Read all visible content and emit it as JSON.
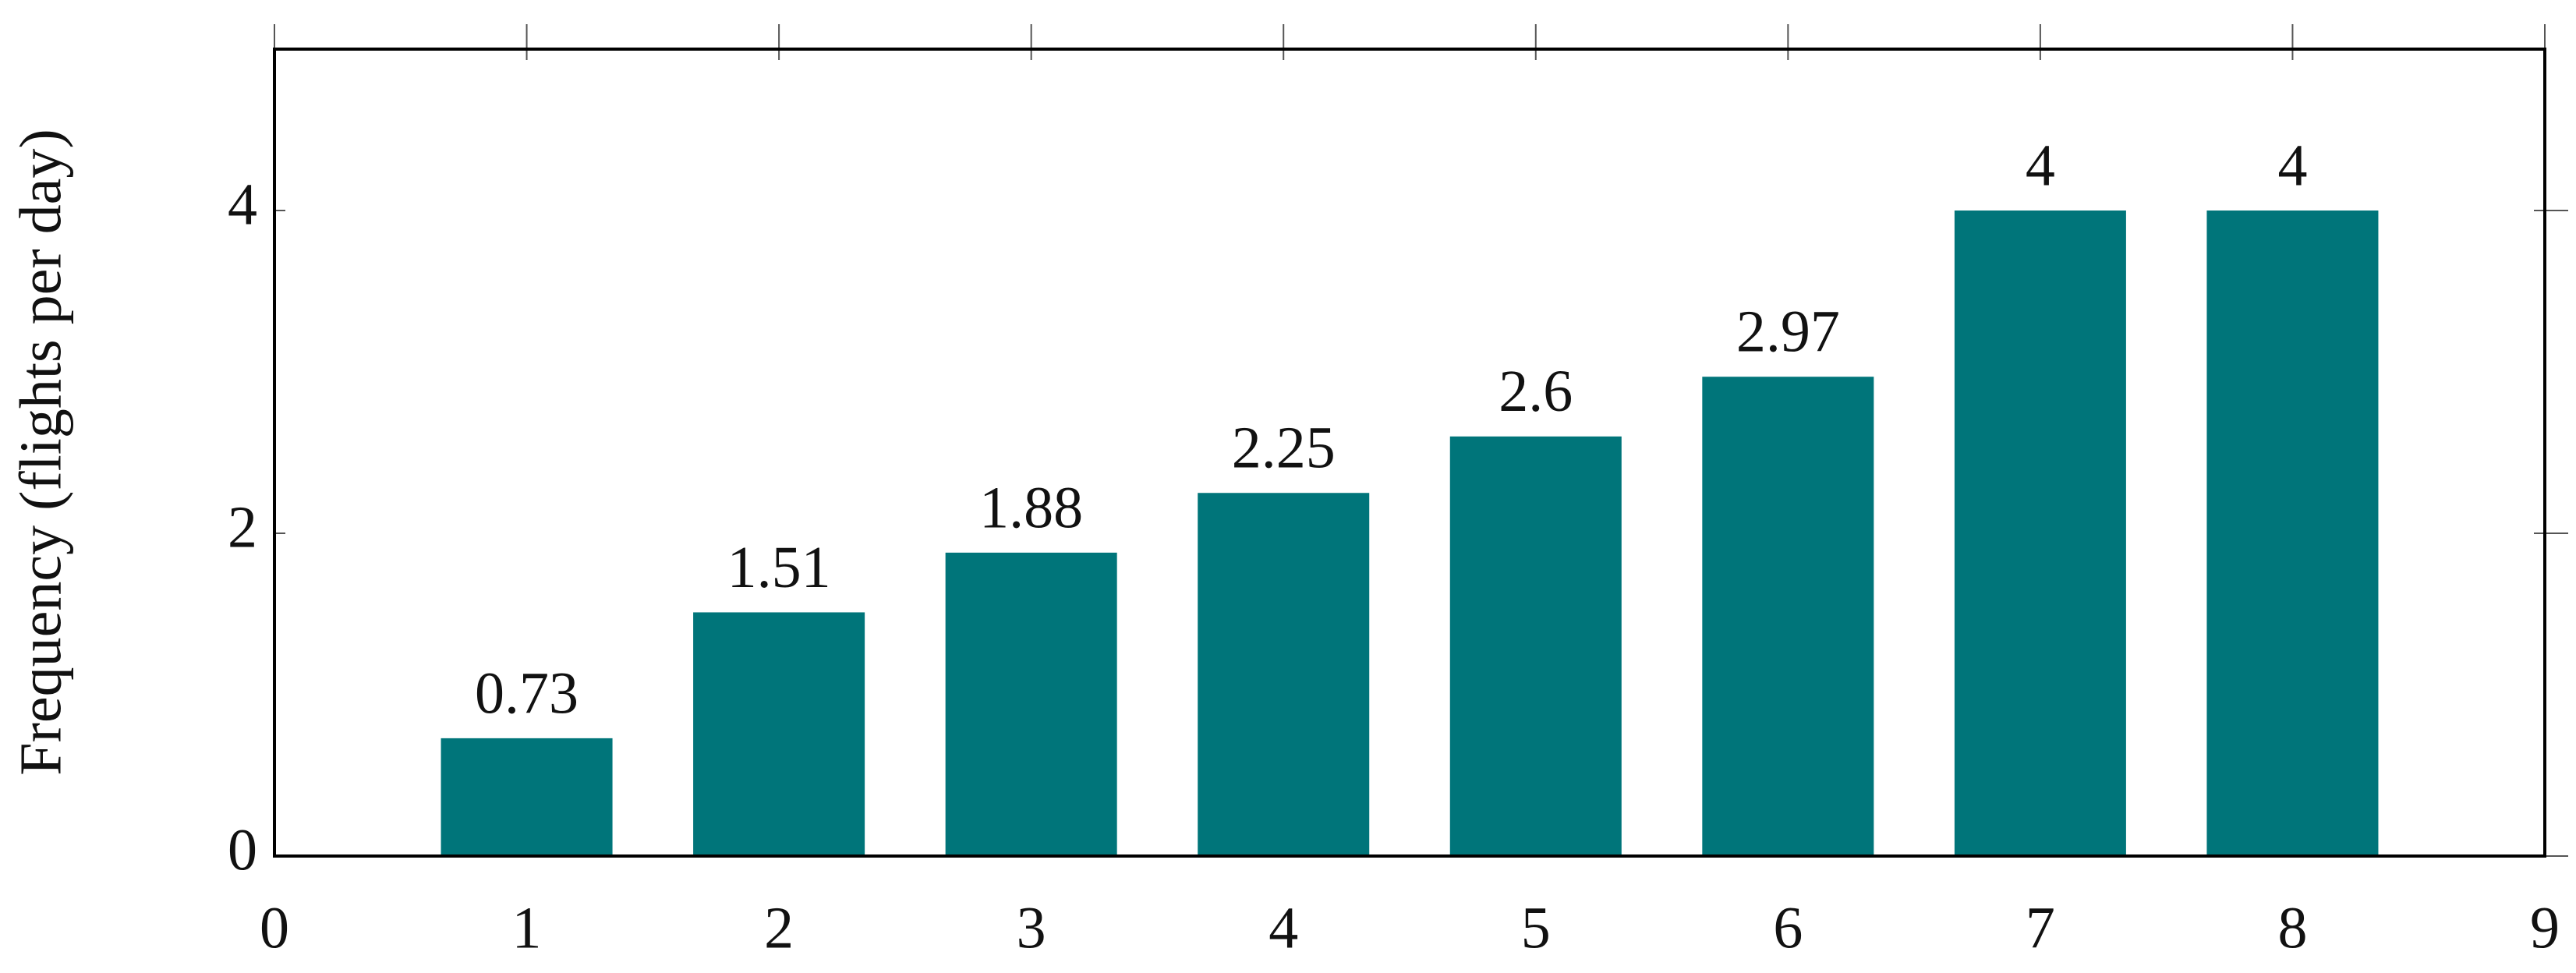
{
  "chart_data": {
    "type": "bar",
    "y_label": "Frequency (flights per day)",
    "x": [
      1,
      2,
      3,
      4,
      5,
      6,
      7,
      8
    ],
    "values": [
      0.73,
      1.51,
      1.88,
      2.25,
      2.6,
      2.97,
      4,
      4
    ],
    "color": "#00757a",
    "xlim": [
      0,
      9
    ],
    "xticks": [
      0,
      1,
      2,
      3,
      4,
      5,
      6,
      7,
      8,
      9
    ],
    "ylim": [
      0,
      5
    ],
    "yticks": [
      0,
      2,
      4
    ]
  }
}
